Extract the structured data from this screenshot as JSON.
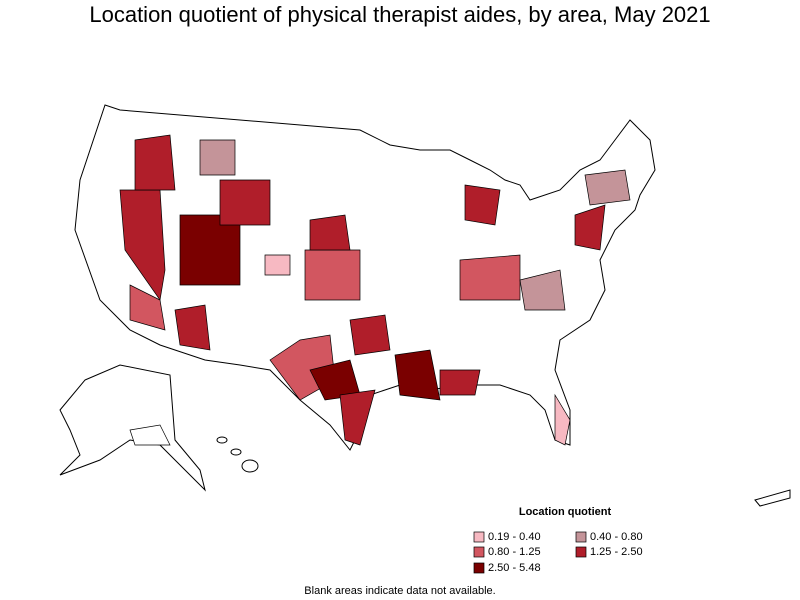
{
  "title": "Location quotient of physical therapist aides, by area, May 2021",
  "legend": {
    "title": "Location quotient",
    "items": [
      {
        "label": "0.19 - 0.40",
        "color": "#f7b9c2"
      },
      {
        "label": "0.40 - 0.80",
        "color": "#c49499"
      },
      {
        "label": "0.80 - 1.25",
        "color": "#d25660"
      },
      {
        "label": "1.25 - 2.50",
        "color": "#b01e2a"
      },
      {
        "label": "2.50 - 5.48",
        "color": "#7a0000"
      }
    ]
  },
  "note": "Blank areas indicate data not available."
}
